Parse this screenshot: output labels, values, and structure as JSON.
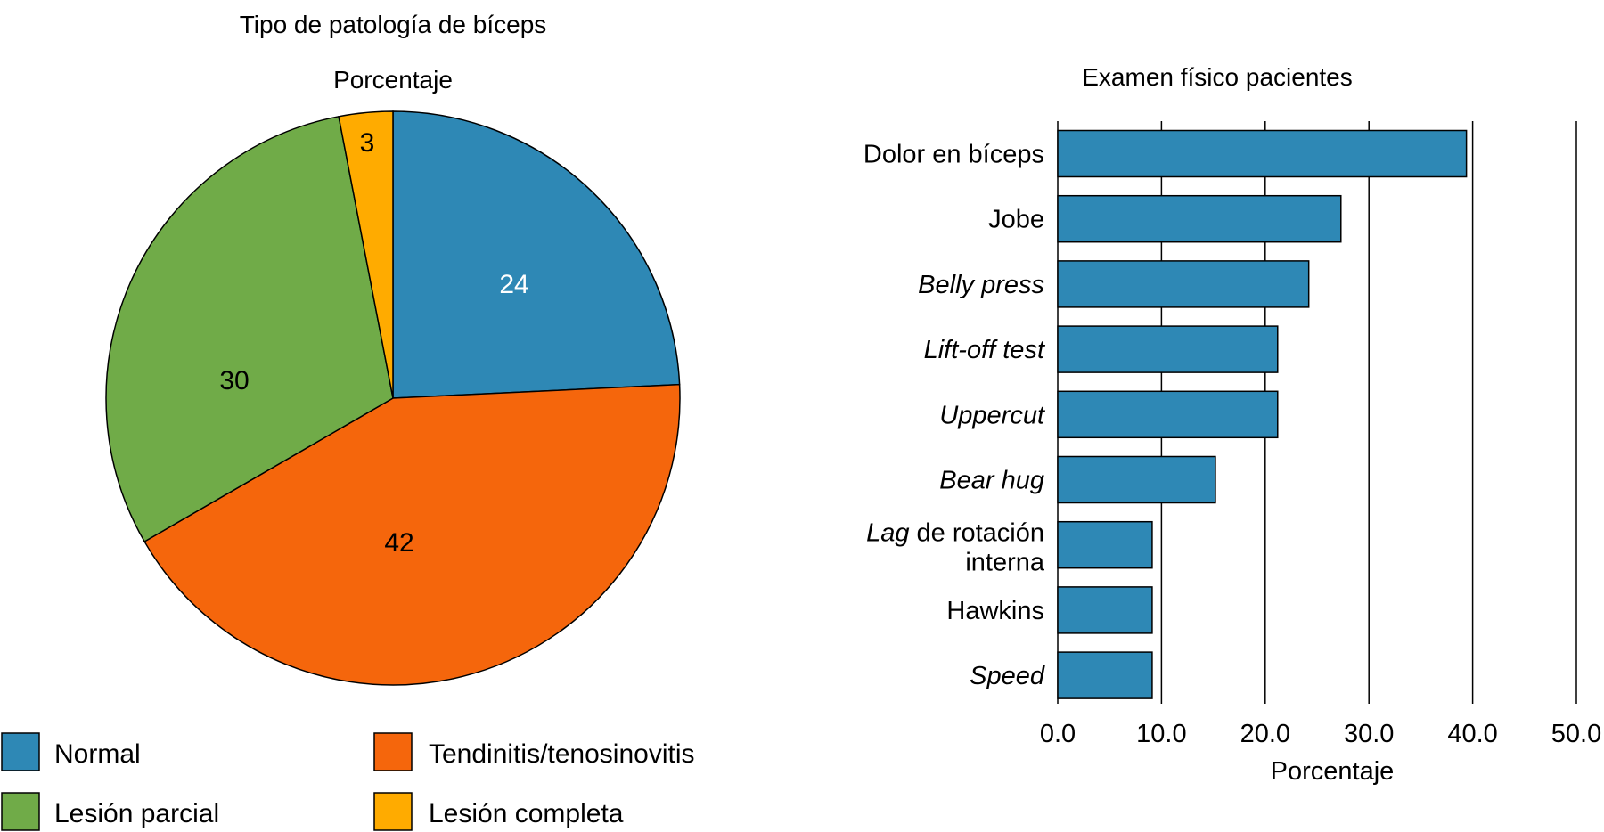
{
  "chart_data": [
    {
      "type": "pie",
      "title": "Tipo de patología de bíceps",
      "subtitle": "Porcentaje",
      "slices": [
        {
          "label": "Normal",
          "value": 24,
          "color": "#2e88b5",
          "label_color": "#ffffff"
        },
        {
          "label": "Tendinitis/tenosinovitis",
          "value": 42,
          "color": "#f5660c",
          "label_color": "#000000"
        },
        {
          "label": "Lesión parcial",
          "value": 30,
          "color": "#70ab48",
          "label_color": "#000000"
        },
        {
          "label": "Lesión completa",
          "value": 3,
          "color": "#ffab00",
          "label_color": "#000000"
        }
      ],
      "legend": "bottom"
    },
    {
      "type": "bar",
      "orientation": "horizontal",
      "title": "Examen físico pacientes",
      "xlabel": "Porcentaje",
      "xlim": [
        0,
        50
      ],
      "xticks": [
        "0.0",
        "10.0",
        "20.0",
        "30.0",
        "40.0",
        "50.0"
      ],
      "grid": "vertical",
      "bar_color": "#2e88b5",
      "categories": [
        {
          "label": "Dolor en bíceps",
          "italic": false,
          "value": 39.4
        },
        {
          "label": "Jobe",
          "italic": false,
          "value": 27.3
        },
        {
          "label": "Belly press",
          "italic": true,
          "value": 24.2
        },
        {
          "label": "Lift-off test",
          "italic": true,
          "value": 21.2
        },
        {
          "label": "Uppercut",
          "italic": true,
          "value": 21.2
        },
        {
          "label": "Bear hug",
          "italic": true,
          "value": 15.2
        },
        {
          "label_italic_part": "Lag",
          "label_rest_line1": " de rotación",
          "label_line2": "interna",
          "italic": "partial",
          "value": 9.1
        },
        {
          "label": "Hawkins",
          "italic": false,
          "value": 9.1
        },
        {
          "label": "Speed",
          "italic": true,
          "value": 9.1
        }
      ]
    }
  ]
}
